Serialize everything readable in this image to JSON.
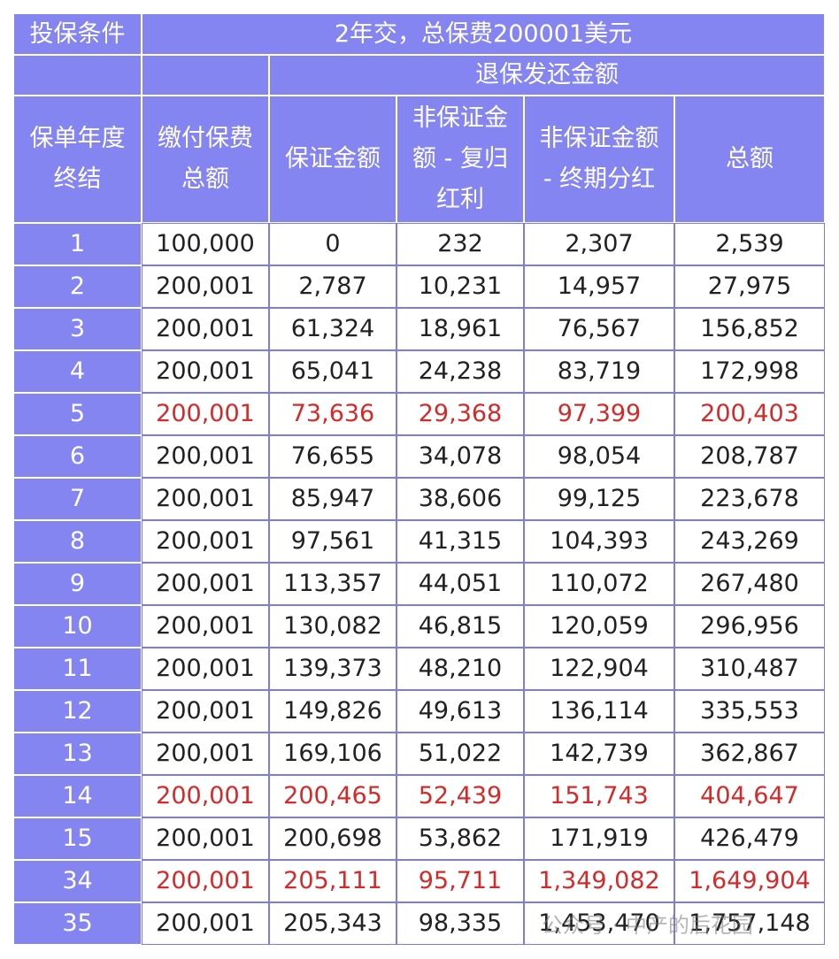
{
  "header": {
    "condition_label": "投保条件",
    "condition_value": "2年交，总保费200001美元",
    "group_label": "退保发还金额",
    "columns": [
      [
        "保单年度",
        "终结"
      ],
      [
        "缴付保费",
        "总额"
      ],
      [
        "保证金额"
      ],
      [
        "非保证金",
        "额 - 复归",
        "红利"
      ],
      [
        "非保证金额",
        "- 终期分红"
      ],
      [
        "总额"
      ]
    ]
  },
  "table": {
    "rows": [
      {
        "cells": [
          "1",
          "100,000",
          "0",
          "232",
          "2,307",
          "2,539"
        ],
        "highlight": false
      },
      {
        "cells": [
          "2",
          "200,001",
          "2,787",
          "10,231",
          "14,957",
          "27,975"
        ],
        "highlight": false
      },
      {
        "cells": [
          "3",
          "200,001",
          "61,324",
          "18,961",
          "76,567",
          "156,852"
        ],
        "highlight": false
      },
      {
        "cells": [
          "4",
          "200,001",
          "65,041",
          "24,238",
          "83,719",
          "172,998"
        ],
        "highlight": false
      },
      {
        "cells": [
          "5",
          "200,001",
          "73,636",
          "29,368",
          "97,399",
          "200,403"
        ],
        "highlight": true
      },
      {
        "cells": [
          "6",
          "200,001",
          "76,655",
          "34,078",
          "98,054",
          "208,787"
        ],
        "highlight": false
      },
      {
        "cells": [
          "7",
          "200,001",
          "85,947",
          "38,606",
          "99,125",
          "223,678"
        ],
        "highlight": false
      },
      {
        "cells": [
          "8",
          "200,001",
          "97,561",
          "41,315",
          "104,393",
          "243,269"
        ],
        "highlight": false
      },
      {
        "cells": [
          "9",
          "200,001",
          "113,357",
          "44,051",
          "110,072",
          "267,480"
        ],
        "highlight": false
      },
      {
        "cells": [
          "10",
          "200,001",
          "130,082",
          "46,815",
          "120,059",
          "296,956"
        ],
        "highlight": false
      },
      {
        "cells": [
          "11",
          "200,001",
          "139,373",
          "48,210",
          "122,904",
          "310,487"
        ],
        "highlight": false
      },
      {
        "cells": [
          "12",
          "200,001",
          "149,826",
          "49,613",
          "136,114",
          "335,553"
        ],
        "highlight": false
      },
      {
        "cells": [
          "13",
          "200,001",
          "169,106",
          "51,022",
          "142,739",
          "362,867"
        ],
        "highlight": false
      },
      {
        "cells": [
          "14",
          "200,001",
          "200,465",
          "52,439",
          "151,743",
          "404,647"
        ],
        "highlight": true
      },
      {
        "cells": [
          "15",
          "200,001",
          "200,698",
          "53,862",
          "171,919",
          "426,479"
        ],
        "highlight": false
      },
      {
        "cells": [
          "34",
          "200,001",
          "205,111",
          "95,711",
          "1,349,082",
          "1,649,904"
        ],
        "highlight": true
      },
      {
        "cells": [
          "35",
          "200,001",
          "205,343",
          "98,335",
          "1,453,470",
          "1,757,148"
        ],
        "highlight": false
      }
    ]
  },
  "watermark": "公众号 · 中产的后花园"
}
